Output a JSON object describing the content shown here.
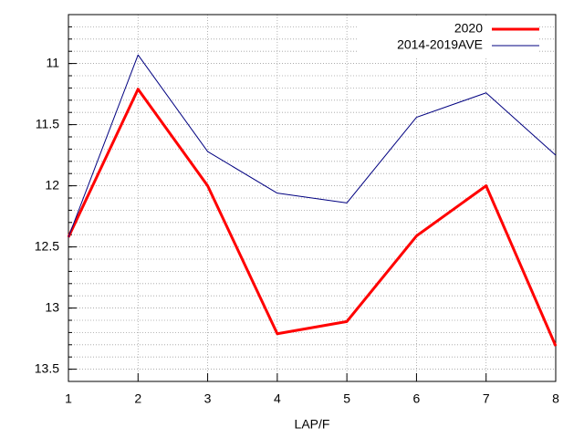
{
  "chart_data": {
    "type": "line",
    "x_label": "LAP/F",
    "x": [
      1,
      2,
      3,
      4,
      5,
      6,
      7,
      8
    ],
    "series": [
      {
        "name": "2020",
        "color": "#ff0000",
        "width": 3,
        "values": [
          12.42,
          11.21,
          12.0,
          13.21,
          13.11,
          12.41,
          12.0,
          13.31
        ]
      },
      {
        "name": "2014-2019AVE",
        "color": "#000080",
        "width": 1,
        "values": [
          12.42,
          10.93,
          11.72,
          12.06,
          12.14,
          11.44,
          11.24,
          11.75
        ]
      }
    ],
    "xlim": [
      1,
      8
    ],
    "xticks": [
      1,
      2,
      3,
      4,
      5,
      6,
      7,
      8
    ],
    "ylim": [
      13.6,
      10.6
    ],
    "yticks": [
      11,
      11.5,
      12,
      12.5,
      13,
      13.5
    ],
    "yminor": 5,
    "grid": true,
    "legend": "top-right"
  }
}
